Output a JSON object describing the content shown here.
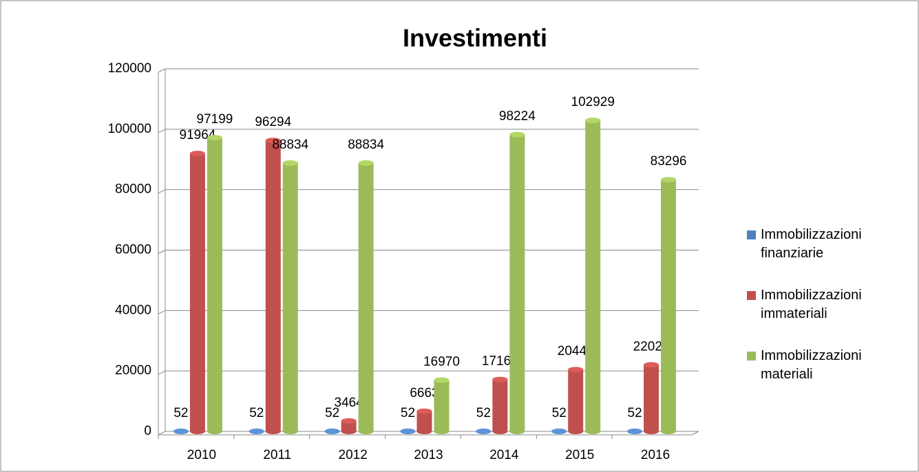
{
  "chart_data": {
    "type": "bar3d",
    "title": "Investimenti",
    "categories": [
      "2010",
      "2011",
      "2012",
      "2013",
      "2014",
      "2015",
      "2016"
    ],
    "series": [
      {
        "name": "Immobilizzazioni finanziarie",
        "color": "#4f81bd",
        "values": [
          52,
          52,
          52,
          52,
          52,
          52,
          52
        ]
      },
      {
        "name": "Immobilizzazioni immateriali",
        "color": "#c0504d",
        "values": [
          91964,
          96294,
          3464,
          6663,
          17163,
          20446,
          22020
        ]
      },
      {
        "name": "Immobilizzazioni materiali",
        "color": "#9bbb59",
        "values": [
          97199,
          88834,
          88834,
          16970,
          98224,
          102929,
          83296
        ]
      }
    ],
    "ylim": [
      0,
      120000
    ],
    "yticks": [
      0,
      20000,
      40000,
      60000,
      80000,
      100000,
      120000
    ],
    "grid": true,
    "legend": "right"
  }
}
